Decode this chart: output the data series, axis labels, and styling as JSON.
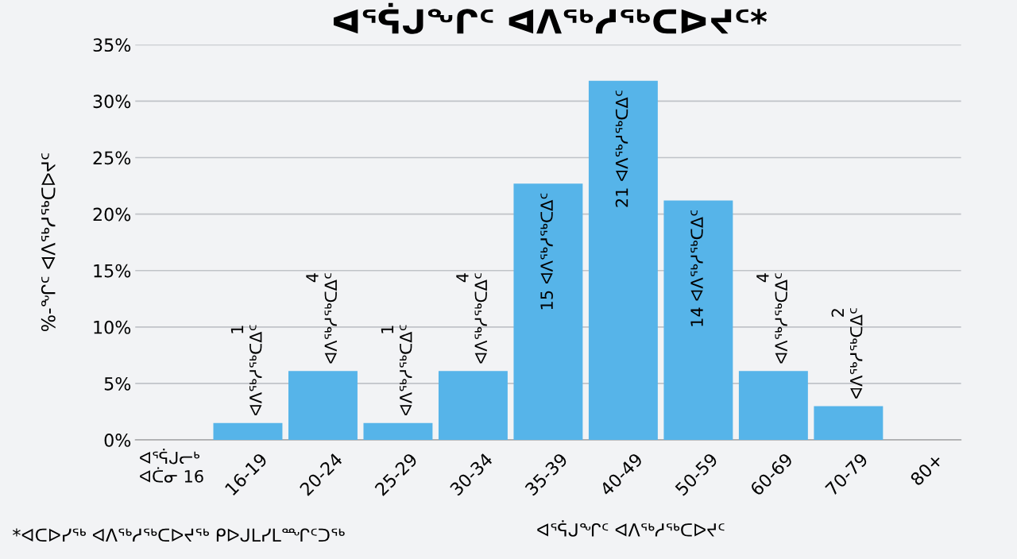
{
  "chart_data": {
    "type": "bar",
    "title": "ᐊᕐᕌᒍᖏᑦ ᐊᐱᖅᓱᖅᑕᐅᔪᑦ*",
    "xlabel": "ᐊᕐᕌᒍᖏᑦ ᐊᐱᖅᓱᖅᑕᐅᔪᑦ",
    "ylabel": "%-ᖏᑦ ᐊᐱᖅᓱᖅᑕᐅᔪᑦ",
    "categories": [
      "ᐊᕐᕌᒍᓕᒃ\nᐊᑖᓂ 16",
      "16-19",
      "20-24",
      "25-29",
      "30-34",
      "35-39",
      "40-49",
      "50-59",
      "60-69",
      "70-79",
      "80+"
    ],
    "values": [
      0,
      1.5,
      6.1,
      1.5,
      6.1,
      22.7,
      31.8,
      21.2,
      6.1,
      3.0,
      0
    ],
    "color": "#56b4e9",
    "ylim": [
      0,
      35
    ],
    "yticks": [
      {
        "value": 0,
        "label": "0%"
      },
      {
        "value": 5,
        "label": "5%"
      },
      {
        "value": 10,
        "label": "10%"
      },
      {
        "value": 15,
        "label": "15%"
      },
      {
        "value": 20,
        "label": "20%"
      },
      {
        "value": 25,
        "label": "25%"
      },
      {
        "value": 30,
        "label": "30%"
      },
      {
        "value": 35,
        "label": "35%"
      }
    ],
    "grid": "y",
    "annotations": [
      "*ᐊᑕᐅᓯᖅ ᐊᐱᖅᓱᖅᑕᐅᔪᖅ ᑭᐅᒍᒪᓯᒪᙱᑦᑐᖅ",
      {
        "text": "1\nᐊᐱᖅᓱᖅᑕᐃᑦ",
        "x": "16-19",
        "y": 1.5
      },
      {
        "text": "4\nᐊᐱᖅᓱᖅᑕᐃᑦ",
        "x": "20-24",
        "y": 6.1
      },
      {
        "text": "1\nᐊᐱᖅᓱᖅᑕᐃᑦ",
        "x": "25-29",
        "y": 1.5
      },
      {
        "text": "4\nᐊᐱᖅᓱᖅᑕᐃᑦ",
        "x": "30-34",
        "y": 6.1
      },
      {
        "text": "15 ᐊᐱᖅᓱᖅᑕᐃᑦ",
        "x": "35-39",
        "y": 22.7
      },
      {
        "text": "21 ᐊᐱᖅᓱᖅᑕᐃᑦ",
        "x": "40-49",
        "y": 31.8
      },
      {
        "text": "14 ᐊᐱᖅᓱᖅᑕᐃᑦ",
        "x": "50-59",
        "y": 21.2
      },
      {
        "text": "4\nᐊᐱᖅᓱᖅᑕᐃᑦ",
        "x": "60-69",
        "y": 6.1
      },
      {
        "text": "2\nᐊᐱᖅᓱᖅᑕᐃᑦ",
        "x": "70-79",
        "y": 3.0
      }
    ]
  }
}
